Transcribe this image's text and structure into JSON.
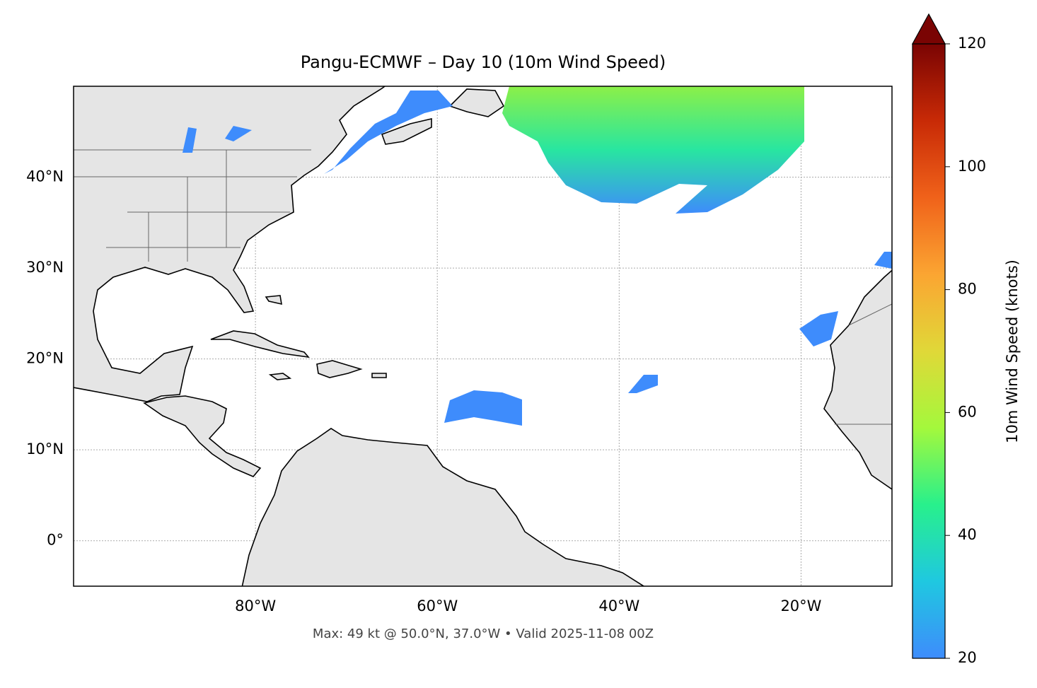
{
  "map": {
    "title": "Pangu-ECMWF – Day 10 (10m Wind Speed)",
    "xlim": [
      -100,
      -10
    ],
    "ylim": [
      -5,
      50
    ],
    "xticks": [
      {
        "value": -80,
        "label": "80°W"
      },
      {
        "value": -60,
        "label": "60°W"
      },
      {
        "value": -40,
        "label": "40°W"
      },
      {
        "value": -20,
        "label": "20°W"
      }
    ],
    "yticks": [
      {
        "value": 0,
        "label": "0°"
      },
      {
        "value": 10,
        "label": "10°N"
      },
      {
        "value": 20,
        "label": "20°N"
      },
      {
        "value": 30,
        "label": "30°N"
      },
      {
        "value": 40,
        "label": "40°N"
      }
    ],
    "grid": true,
    "footer": "Max: 49 kt @ 50.0°N, 37.0°W • Valid 2025-11-08 00Z",
    "colorbar": {
      "label": "10m Wind Speed (knots)",
      "lim": [
        20,
        120
      ],
      "ticks": [
        20,
        40,
        60,
        80,
        100,
        120
      ],
      "colors": [
        "#3e8cfc",
        "#1fc8e0",
        "#28f08c",
        "#a4f83c",
        "#e0d838",
        "#fba532",
        "#f0621a",
        "#c82a06",
        "#7a0403"
      ]
    }
  }
}
